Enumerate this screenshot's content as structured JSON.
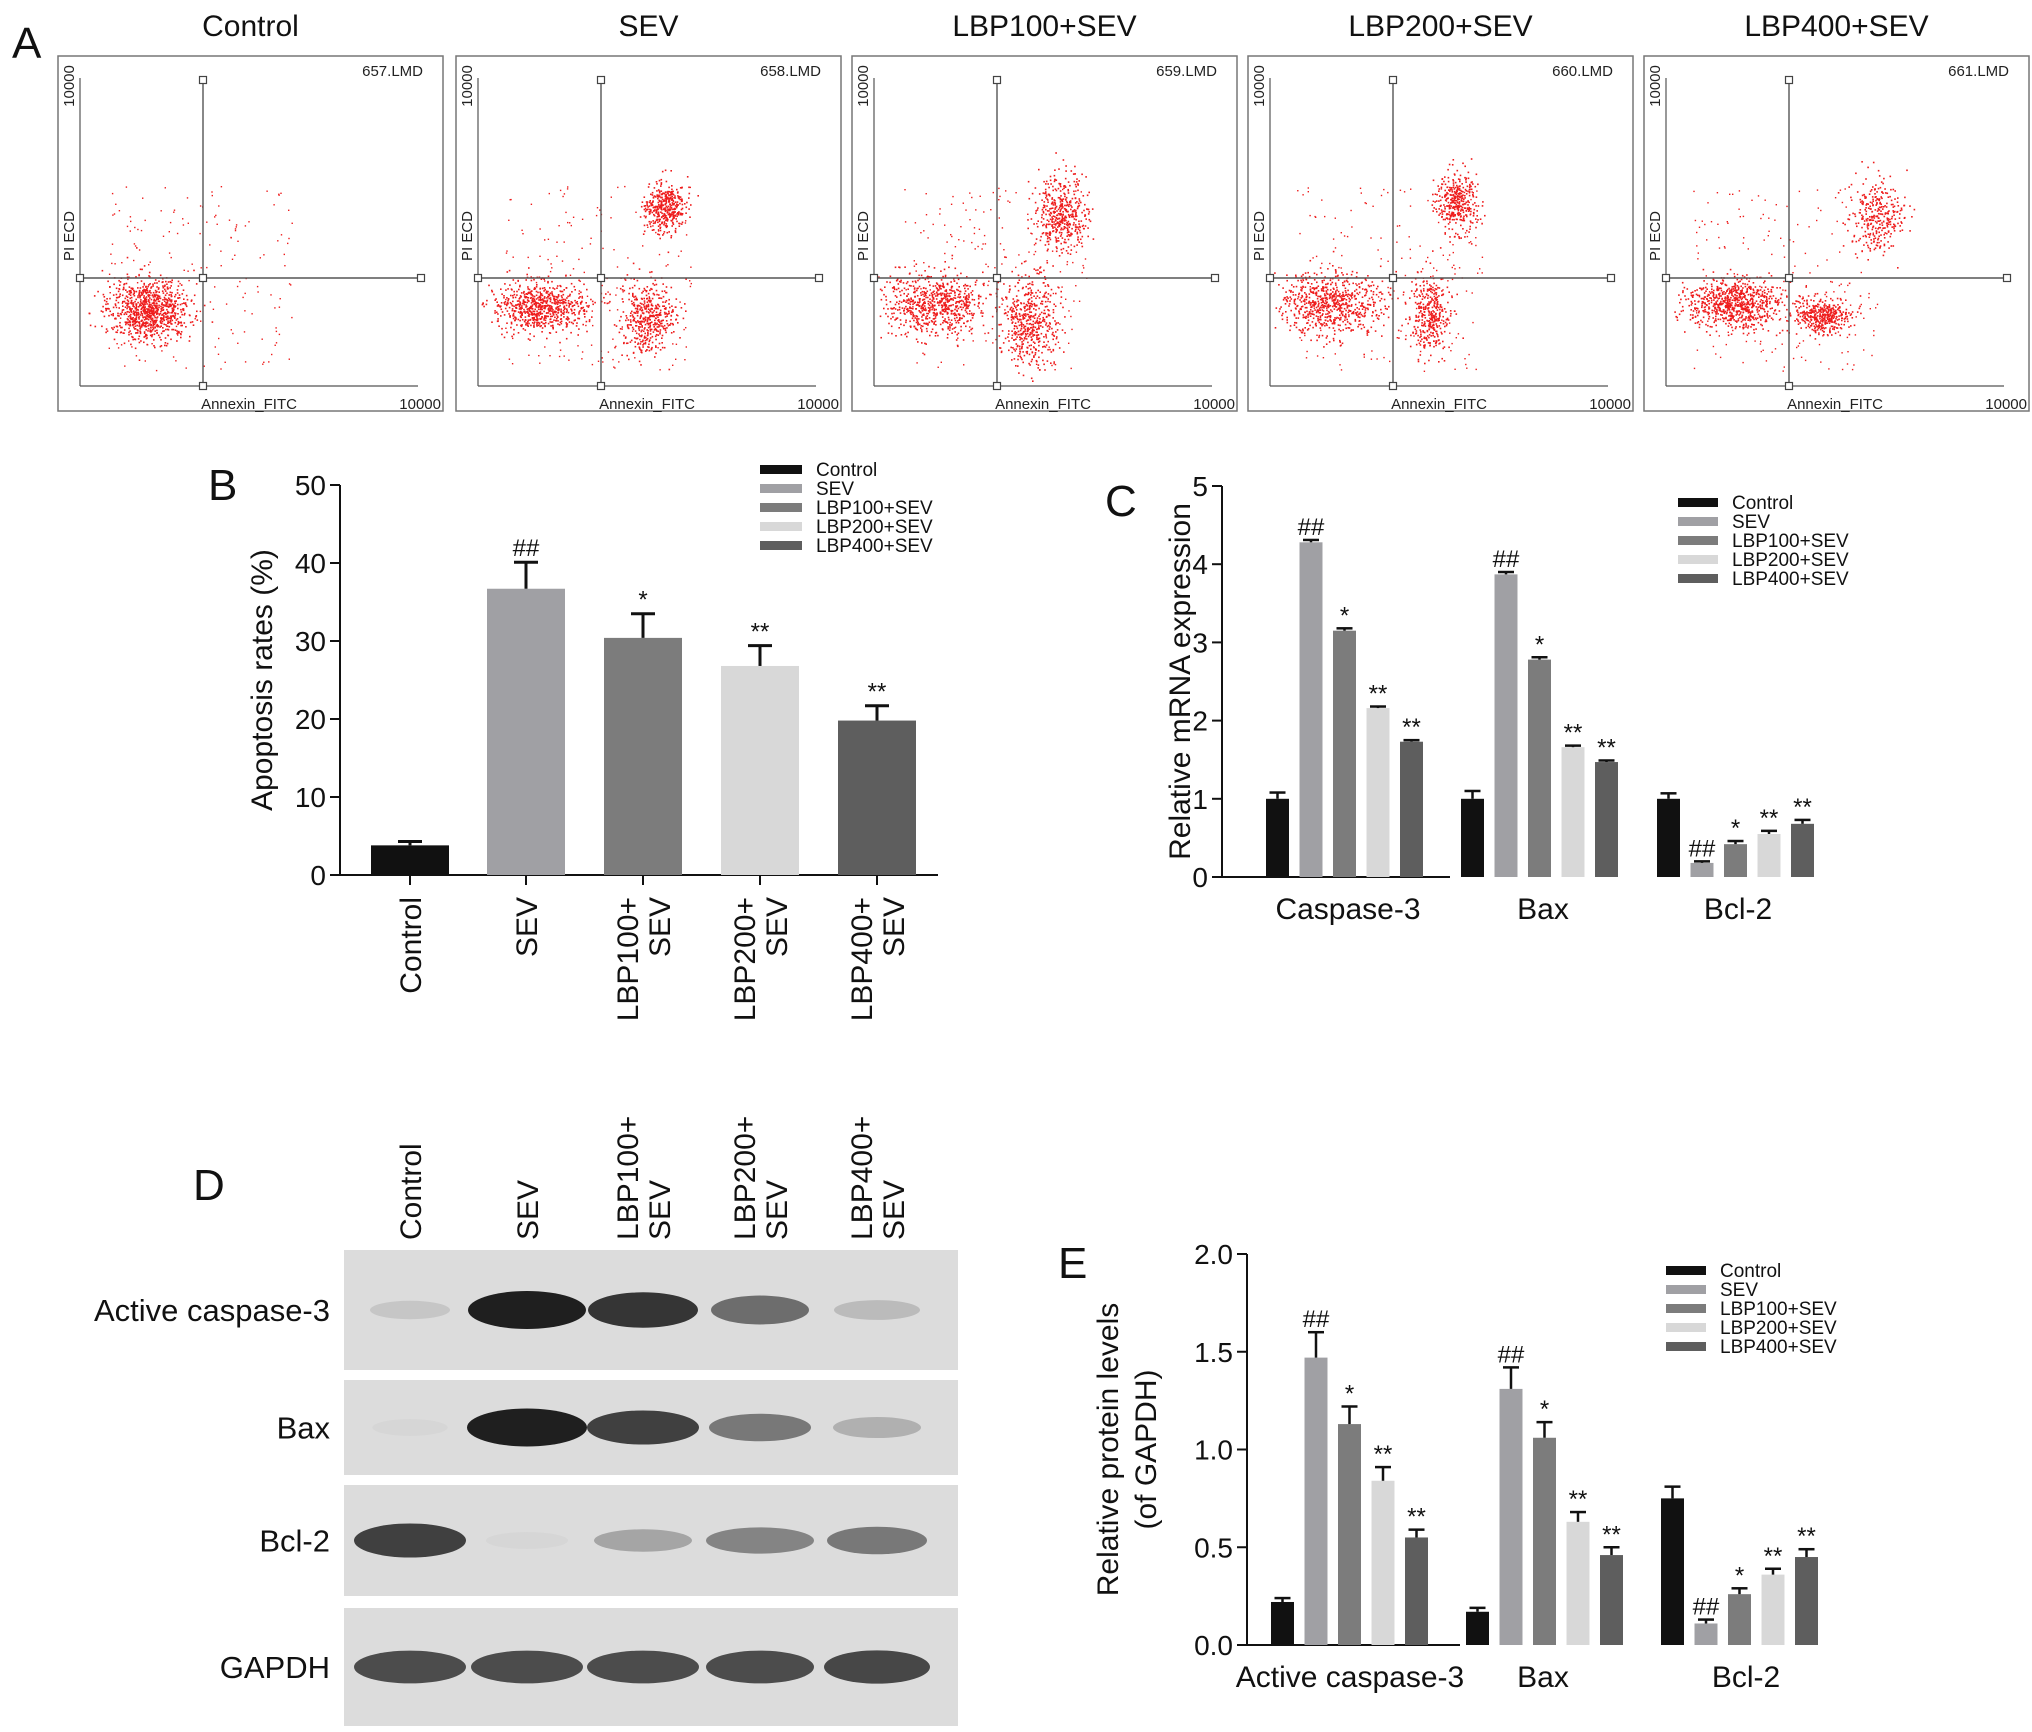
{
  "panel_letters": {
    "a": "A",
    "b": "B",
    "c": "C",
    "d": "D",
    "e": "E"
  },
  "groups": [
    "Control",
    "SEV",
    "LBP100+SEV",
    "LBP200+SEV",
    "LBP400+SEV"
  ],
  "group_labels_vertical": [
    [
      "Control"
    ],
    [
      "SEV"
    ],
    [
      "LBP100+",
      "SEV"
    ],
    [
      "LBP200+",
      "SEV"
    ],
    [
      "LBP400+",
      "SEV"
    ]
  ],
  "colors": {
    "Control": "#111111",
    "SEV": "#a0a0a4",
    "LBP100+SEV": "#7c7c7c",
    "LBP200+SEV": "#d8d8d8",
    "LBP400+SEV": "#5e5e5e",
    "dots": "#ee1c1c"
  },
  "flow": {
    "titles": [
      "Control",
      "SEV",
      "LBP100+SEV",
      "LBP200+SEV",
      "LBP400+SEV"
    ],
    "files": [
      "657.LMD",
      "658.LMD",
      "659.LMD",
      "660.LMD",
      "661.LMD"
    ],
    "xlabel": "Annexin_FITC",
    "ylabel": "PI ECD",
    "axis_max": "10000"
  },
  "blot": {
    "rows": [
      "Active caspase-3",
      "Bax",
      "Bcl-2",
      "GAPDH"
    ],
    "lane_intensity": [
      [
        0.25,
        1.0,
        0.9,
        0.65,
        0.3
      ],
      [
        0.18,
        1.0,
        0.85,
        0.6,
        0.35
      ],
      [
        0.85,
        0.18,
        0.4,
        0.55,
        0.6
      ],
      [
        0.8,
        0.8,
        0.8,
        0.8,
        0.82
      ]
    ]
  },
  "chart_data": [
    {
      "type": "bar",
      "panel": "B",
      "title": "",
      "xlabel": "",
      "ylabel": "Apoptosis rates (%)",
      "ylim": [
        0,
        50
      ],
      "yticks": [
        0,
        10,
        20,
        30,
        40,
        50
      ],
      "categories": [
        "Control",
        "SEV",
        "LBP100+SEV",
        "LBP200+SEV",
        "LBP400+SEV"
      ],
      "values": [
        3.8,
        36.7,
        30.4,
        26.8,
        19.8
      ],
      "errors": [
        0.5,
        3.4,
        3.1,
        2.6,
        1.9
      ],
      "annotations": [
        "",
        "##",
        "*",
        "**",
        "**"
      ],
      "legend": [
        "Control",
        "SEV",
        "LBP100+SEV",
        "LBP200+SEV",
        "LBP400+SEV"
      ],
      "legend_position": "top-right"
    },
    {
      "type": "bar",
      "panel": "C",
      "title": "",
      "xlabel": "",
      "ylabel": "Relative mRNA expression",
      "ylim": [
        0,
        5
      ],
      "yticks": [
        0,
        1,
        2,
        3,
        4,
        5
      ],
      "categories": [
        "Caspase-3",
        "Bax",
        "Bcl-2"
      ],
      "series": [
        {
          "name": "Control",
          "values": [
            1.0,
            1.0,
            1.0
          ],
          "errors": [
            0.08,
            0.1,
            0.07
          ],
          "annotations": [
            "",
            "",
            ""
          ]
        },
        {
          "name": "SEV",
          "values": [
            4.28,
            3.87,
            0.18
          ],
          "errors": [
            0.03,
            0.03,
            0.02
          ],
          "annotations": [
            "##",
            "##",
            "##"
          ]
        },
        {
          "name": "LBP100+SEV",
          "values": [
            3.15,
            2.78,
            0.42
          ],
          "errors": [
            0.03,
            0.03,
            0.04
          ],
          "annotations": [
            "*",
            "*",
            "*"
          ]
        },
        {
          "name": "LBP200+SEV",
          "values": [
            2.16,
            1.66,
            0.55
          ],
          "errors": [
            0.02,
            0.02,
            0.04
          ],
          "annotations": [
            "**",
            "**",
            "**"
          ]
        },
        {
          "name": "LBP400+SEV",
          "values": [
            1.73,
            1.47,
            0.68
          ],
          "errors": [
            0.02,
            0.02,
            0.05
          ],
          "annotations": [
            "**",
            "**",
            "**"
          ]
        }
      ],
      "legend_position": "top-right"
    },
    {
      "type": "bar",
      "panel": "E",
      "title": "",
      "xlabel": "",
      "ylabel": [
        "Relative protein levels",
        "(of GAPDH)"
      ],
      "ylim": [
        0,
        2.0
      ],
      "yticks": [
        "0.0",
        "0.5",
        "1.0",
        "1.5",
        "2.0"
      ],
      "categories": [
        "Active caspase-3",
        "Bax",
        "Bcl-2"
      ],
      "series": [
        {
          "name": "Control",
          "values": [
            0.22,
            0.17,
            0.75
          ],
          "errors": [
            0.02,
            0.02,
            0.06
          ],
          "annotations": [
            "",
            "",
            ""
          ]
        },
        {
          "name": "SEV",
          "values": [
            1.47,
            1.31,
            0.11
          ],
          "errors": [
            0.13,
            0.11,
            0.02
          ],
          "annotations": [
            "##",
            "##",
            "##"
          ]
        },
        {
          "name": "LBP100+SEV",
          "values": [
            1.13,
            1.06,
            0.26
          ],
          "errors": [
            0.09,
            0.08,
            0.03
          ],
          "annotations": [
            "*",
            "*",
            "*"
          ]
        },
        {
          "name": "LBP200+SEV",
          "values": [
            0.84,
            0.63,
            0.36
          ],
          "errors": [
            0.07,
            0.05,
            0.03
          ],
          "annotations": [
            "**",
            "**",
            "**"
          ]
        },
        {
          "name": "LBP400+SEV",
          "values": [
            0.55,
            0.46,
            0.45
          ],
          "errors": [
            0.04,
            0.04,
            0.04
          ],
          "annotations": [
            "**",
            "**",
            "**"
          ]
        }
      ],
      "legend_position": "top-right"
    }
  ]
}
